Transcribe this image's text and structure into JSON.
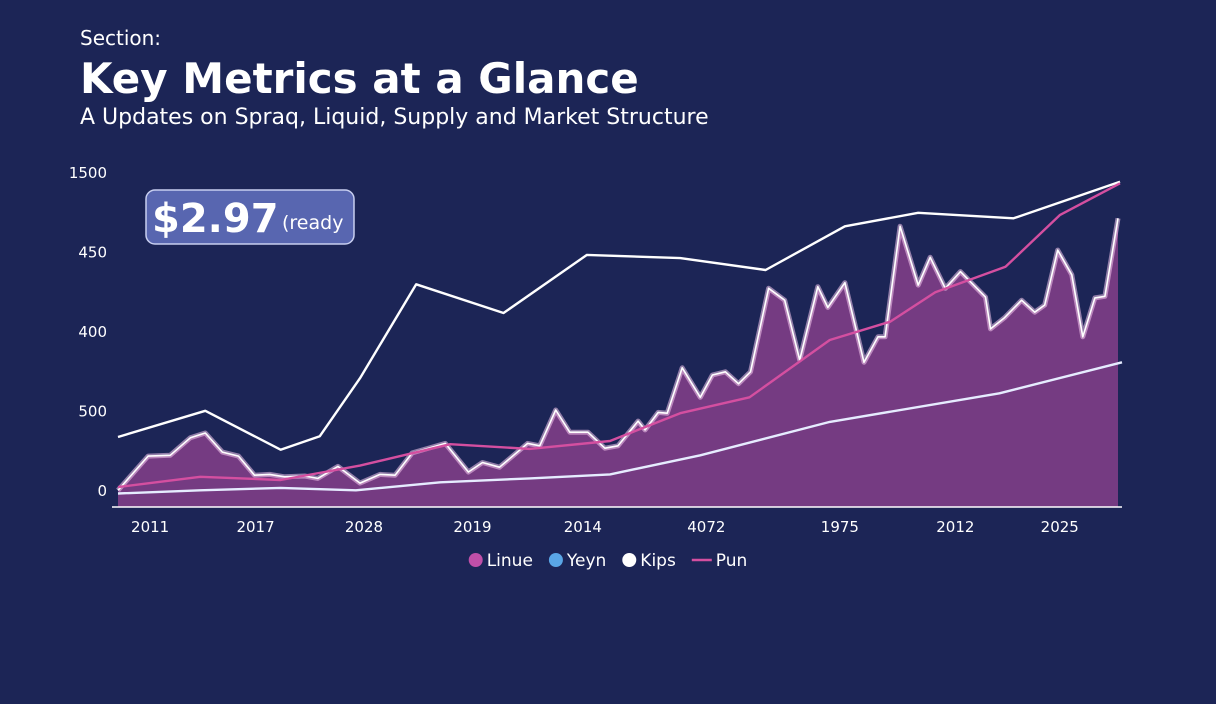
{
  "section": "Section:",
  "chart_data": {
    "type": "line",
    "title": "Key Metrics at a Glance",
    "subtitle": "A Updates on Spraq, Liquid, Supply and Market Structure",
    "annotation": {
      "text": "$2.97",
      "suffix": "(ready"
    },
    "xlim": [
      0,
      100
    ],
    "xticks": [
      {
        "value": 3.2,
        "label": "2011"
      },
      {
        "value": 13.7,
        "label": "2017"
      },
      {
        "value": 24.5,
        "label": "2028"
      },
      {
        "value": 35.3,
        "label": "2019"
      },
      {
        "value": 46.3,
        "label": "2014"
      },
      {
        "value": 58.6,
        "label": "4072"
      },
      {
        "value": 71.9,
        "label": "1975"
      },
      {
        "value": 83.4,
        "label": "2012"
      },
      {
        "value": 93.8,
        "label": "2025"
      }
    ],
    "ylim": [
      -100,
      2000
    ],
    "yticks": [
      0,
      500,
      {
        "value": 1000,
        "label": "400"
      },
      {
        "value": 1500,
        "label": "450"
      },
      {
        "value": 2000,
        "label": "1500"
      }
    ],
    "grid": false,
    "legend": "bottom",
    "series": [
      {
        "name": "Linue",
        "color": "#c04fa8",
        "fill": true,
        "x": [
          0,
          3.0,
          5.2,
          7.2,
          8.7,
          10.4,
          12.0,
          13.6,
          15.1,
          16.6,
          18.6,
          19.9,
          21.9,
          24.1,
          26.1,
          27.6,
          29.3,
          32.6,
          34.9,
          36.3,
          38.0,
          40.8,
          42.0,
          43.6,
          45.0,
          46.8,
          48.5,
          49.8,
          51.8,
          52.5,
          53.8,
          54.7,
          56.2,
          58.0,
          59.2,
          60.5,
          61.8,
          63.0,
          64.8,
          66.4,
          67.9,
          69.7,
          70.7,
          72.4,
          74.3,
          75.7,
          76.4,
          77.9,
          79.7,
          80.9,
          82.4,
          83.9,
          86.4,
          86.9,
          88.3,
          90.0,
          91.3,
          92.3,
          93.6,
          95.0,
          96.1,
          97.3,
          98.3,
          99.6
        ],
        "values": [
          5,
          220,
          225,
          335,
          365,
          245,
          220,
          100,
          105,
          90,
          95,
          80,
          155,
          50,
          105,
          100,
          240,
          300,
          120,
          180,
          150,
          300,
          285,
          510,
          370,
          370,
          270,
          285,
          440,
          385,
          495,
          490,
          775,
          590,
          730,
          750,
          675,
          750,
          1275,
          1200,
          825,
          1285,
          1155,
          1310,
          810,
          970,
          970,
          1665,
          1295,
          1470,
          1275,
          1380,
          1220,
          1020,
          1090,
          1200,
          1125,
          1170,
          1515,
          1360,
          970,
          1215,
          1225,
          1715
        ]
      },
      {
        "name": "Yeyn",
        "color": "#e6ecff",
        "x": [
          0,
          8.2,
          16.2,
          23.7,
          32.1,
          41.0,
          49.0,
          58.0,
          70.9,
          87.8,
          100
        ],
        "values": [
          -15,
          5,
          20,
          5,
          55,
          80,
          105,
          225,
          435,
          615,
          810
        ]
      },
      {
        "name": "Kips",
        "color": "#ffffff",
        "x": [
          0,
          8.7,
          16.2,
          20.1,
          24.1,
          29.7,
          38.4,
          46.7,
          56.0,
          64.5,
          72.4,
          79.7,
          89.2,
          99.8
        ],
        "values": [
          340,
          505,
          260,
          345,
          710,
          1300,
          1120,
          1485,
          1465,
          1390,
          1665,
          1750,
          1715,
          1945
        ]
      },
      {
        "name": "Pun",
        "color": "#d44fa0",
        "x": [
          0,
          8.2,
          16.2,
          24.1,
          33.1,
          41.0,
          49.0,
          56.0,
          62.9,
          70.9,
          76.9,
          81.4,
          88.4,
          93.8,
          99.8
        ],
        "values": [
          25,
          90,
          70,
          160,
          295,
          265,
          315,
          490,
          590,
          950,
          1065,
          1250,
          1410,
          1735,
          1935
        ]
      }
    ]
  }
}
